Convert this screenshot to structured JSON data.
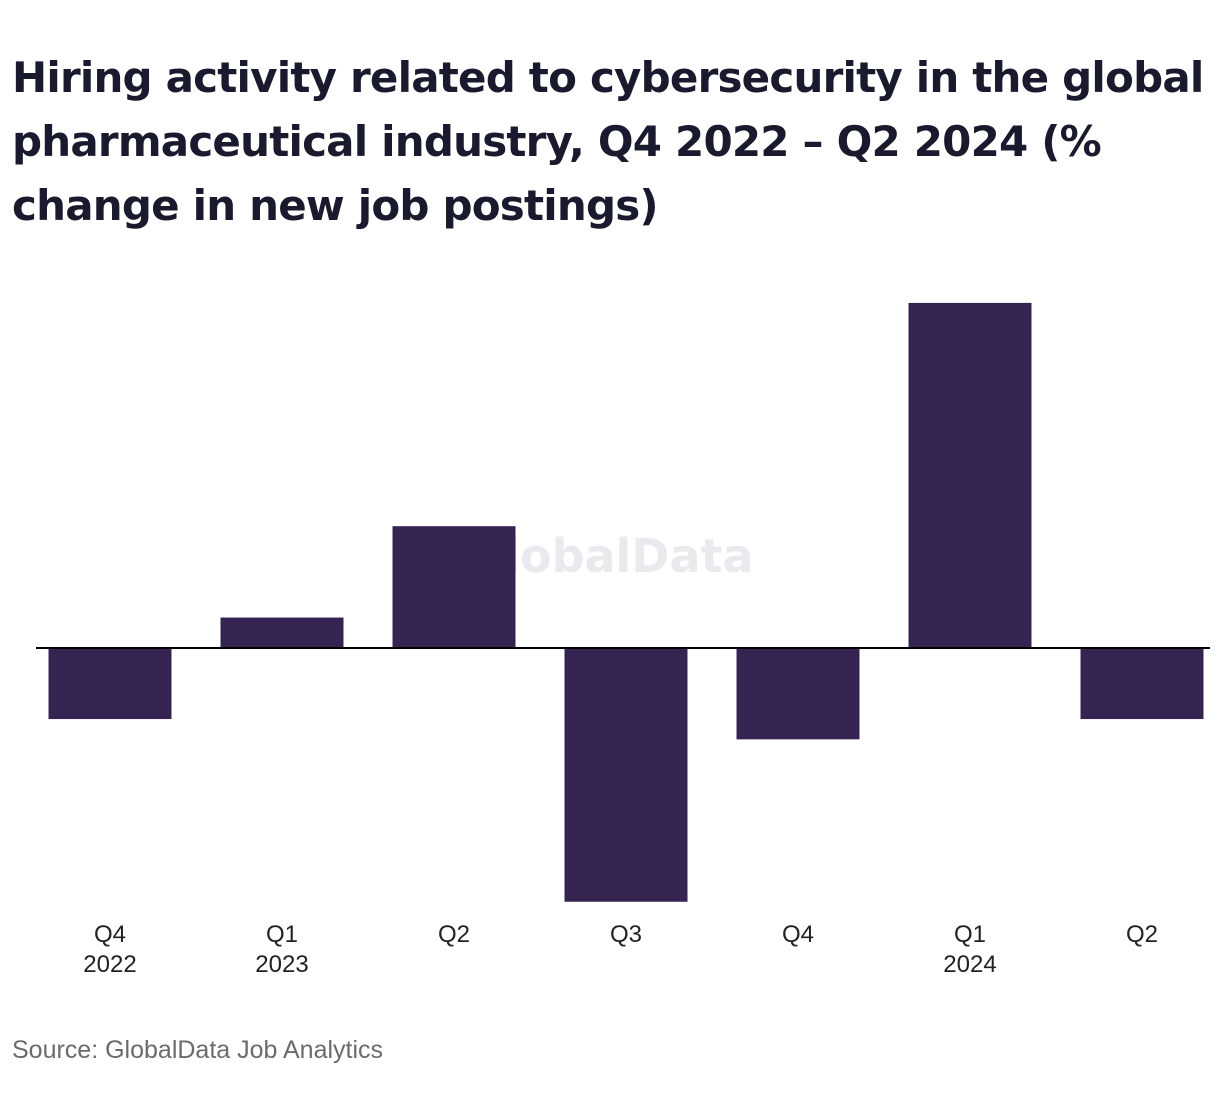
{
  "chart_data": {
    "type": "bar",
    "title": "Hiring activity related to cybersecurity in the global pharmaceutical industry, Q4 2022 – Q2 2024 (% change in new job postings)",
    "categories": [
      {
        "quarter": "Q4",
        "year": "2022"
      },
      {
        "quarter": "Q1",
        "year": "2023"
      },
      {
        "quarter": "Q2",
        "year": ""
      },
      {
        "quarter": "Q3",
        "year": ""
      },
      {
        "quarter": "Q4",
        "year": ""
      },
      {
        "quarter": "Q1",
        "year": "2024"
      },
      {
        "quarter": "Q2",
        "year": ""
      }
    ],
    "values": [
      -7,
      3,
      12,
      -25,
      -9,
      34,
      -7
    ],
    "xlabel": "",
    "ylabel": "",
    "ylim": [
      -25,
      34
    ],
    "grid": false,
    "bar_color": "#352452",
    "watermark": "GlobalData"
  },
  "source": "Source: GlobalData Job Analytics"
}
